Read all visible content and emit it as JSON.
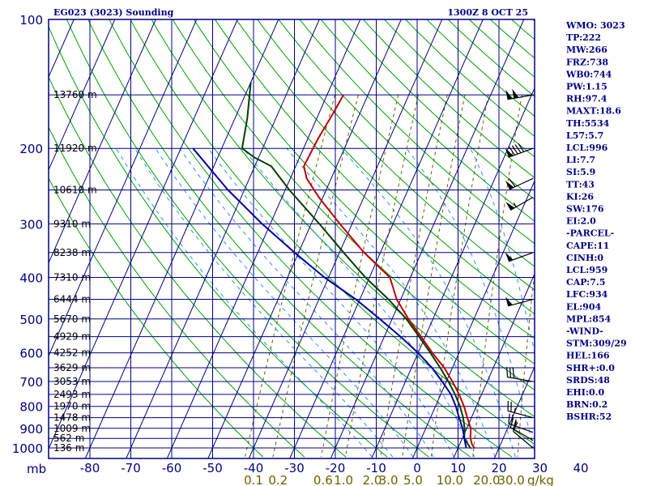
{
  "chart_data": {
    "type": "line",
    "title": "EG023 (3023) Sounding",
    "valid_time": "1300Z  8 OCT 25",
    "pressure_unit_label": "mb",
    "mixing_unit_label": "g/kg",
    "pressure_levels": [
      100,
      200,
      300,
      400,
      500,
      600,
      700,
      800,
      900,
      1000
    ],
    "temperature_ticks": [
      -80,
      -70,
      -60,
      -50,
      -40,
      -30,
      -20,
      -10,
      0,
      10,
      20,
      30,
      40
    ],
    "mixing_ratio_labels": [
      {
        "text": "0.1",
        "t": -40
      },
      {
        "text": "0.2",
        "t": -34
      },
      {
        "text": "0.6",
        "t": -23
      },
      {
        "text": "1.0",
        "t": -18
      },
      {
        "text": "2.0",
        "t": -11
      },
      {
        "text": "3.0",
        "t": -7
      },
      {
        "text": "5.0",
        "t": -1
      },
      {
        "text": "10.0",
        "t": 8
      },
      {
        "text": "20.0",
        "t": 17
      },
      {
        "text": "30.0",
        "t": 23
      }
    ],
    "height_labels": [
      {
        "p": 150,
        "text": "13760 m"
      },
      {
        "p": 200,
        "text": "11920 m"
      },
      {
        "p": 250,
        "text": "10610 m"
      },
      {
        "p": 300,
        "text": "9310 m"
      },
      {
        "p": 350,
        "text": "8238 m"
      },
      {
        "p": 400,
        "text": "7310 m"
      },
      {
        "p": 450,
        "text": "6444 m"
      },
      {
        "p": 500,
        "text": "5670 m"
      },
      {
        "p": 550,
        "text": "4929 m"
      },
      {
        "p": 600,
        "text": "4252 m"
      },
      {
        "p": 650,
        "text": "3629 m"
      },
      {
        "p": 700,
        "text": "3053 m"
      },
      {
        "p": 750,
        "text": "2493 m"
      },
      {
        "p": 800,
        "text": "1970 m"
      },
      {
        "p": 850,
        "text": "1478 m"
      },
      {
        "p": 900,
        "text": "1009 m"
      },
      {
        "p": 950,
        "text": "562 m"
      },
      {
        "p": 1000,
        "text": "136 m"
      }
    ],
    "series": [
      {
        "name": "Temperature",
        "color": "#c00000",
        "points": [
          {
            "p": 150,
            "t": -56
          },
          {
            "p": 165,
            "t": -56.5
          },
          {
            "p": 190,
            "t": -57.5
          },
          {
            "p": 220,
            "t": -58
          },
          {
            "p": 235,
            "t": -56
          },
          {
            "p": 260,
            "t": -51
          },
          {
            "p": 300,
            "t": -43
          },
          {
            "p": 350,
            "t": -34
          },
          {
            "p": 400,
            "t": -25
          },
          {
            "p": 450,
            "t": -21
          },
          {
            "p": 500,
            "t": -16
          },
          {
            "p": 550,
            "t": -11
          },
          {
            "p": 600,
            "t": -6.5
          },
          {
            "p": 650,
            "t": -2
          },
          {
            "p": 700,
            "t": 1.5
          },
          {
            "p": 750,
            "t": 4.5
          },
          {
            "p": 800,
            "t": 7
          },
          {
            "p": 850,
            "t": 9
          },
          {
            "p": 900,
            "t": 11
          },
          {
            "p": 950,
            "t": 12
          },
          {
            "p": 980,
            "t": 13
          },
          {
            "p": 1000,
            "t": 14
          }
        ]
      },
      {
        "name": "Dewpoint",
        "color": "#004000",
        "points": [
          {
            "p": 140,
            "t": -80
          },
          {
            "p": 170,
            "t": -77
          },
          {
            "p": 200,
            "t": -75
          },
          {
            "p": 210,
            "t": -71
          },
          {
            "p": 220,
            "t": -66
          },
          {
            "p": 250,
            "t": -59
          },
          {
            "p": 300,
            "t": -48
          },
          {
            "p": 350,
            "t": -39
          },
          {
            "p": 400,
            "t": -31
          },
          {
            "p": 450,
            "t": -23
          },
          {
            "p": 500,
            "t": -16.5
          },
          {
            "p": 550,
            "t": -11.5
          },
          {
            "p": 600,
            "t": -7
          },
          {
            "p": 650,
            "t": -3
          },
          {
            "p": 700,
            "t": 0.5
          },
          {
            "p": 750,
            "t": 3.5
          },
          {
            "p": 800,
            "t": 6
          },
          {
            "p": 850,
            "t": 8
          },
          {
            "p": 900,
            "t": 9.5
          },
          {
            "p": 950,
            "t": 10.5
          },
          {
            "p": 1000,
            "t": 13
          }
        ]
      },
      {
        "name": "Parcel",
        "color": "#0000a0",
        "points": [
          {
            "p": 200,
            "t": -87
          },
          {
            "p": 250,
            "t": -74
          },
          {
            "p": 300,
            "t": -62
          },
          {
            "p": 350,
            "t": -51
          },
          {
            "p": 400,
            "t": -41
          },
          {
            "p": 450,
            "t": -31
          },
          {
            "p": 500,
            "t": -23
          },
          {
            "p": 550,
            "t": -16
          },
          {
            "p": 600,
            "t": -10
          },
          {
            "p": 650,
            "t": -5
          },
          {
            "p": 700,
            "t": -1
          },
          {
            "p": 750,
            "t": 2.5
          },
          {
            "p": 800,
            "t": 5
          },
          {
            "p": 850,
            "t": 7
          },
          {
            "p": 900,
            "t": 9
          },
          {
            "p": 950,
            "t": 10.5
          },
          {
            "p": 1000,
            "t": 12
          }
        ]
      }
    ],
    "wind_barbs": [
      {
        "p": 150,
        "dir": 260,
        "spd": 100
      },
      {
        "p": 200,
        "dir": 250,
        "spd": 90
      },
      {
        "p": 235,
        "dir": 245,
        "spd": 60
      },
      {
        "p": 260,
        "dir": 240,
        "spd": 55
      },
      {
        "p": 350,
        "dir": 250,
        "spd": 50
      },
      {
        "p": 450,
        "dir": 255,
        "spd": 50
      },
      {
        "p": 700,
        "dir": 280,
        "spd": 30
      },
      {
        "p": 850,
        "dir": 285,
        "spd": 25
      },
      {
        "p": 920,
        "dir": 290,
        "spd": 25
      },
      {
        "p": 960,
        "dir": 300,
        "spd": 20
      },
      {
        "p": 1000,
        "dir": 310,
        "spd": 10
      }
    ]
  },
  "indices": [
    "WMO: 3023",
    "TP:222",
    "MW:266",
    "FRZ:738",
    "WB0:744",
    "PW:1.15",
    "RH:97.4",
    "MAXT:18.6",
    "TH:5534",
    "L57:5.7",
    "LCL:996",
    "LI:7.7",
    "SI:5.9",
    "TT:43",
    "KI:26",
    "SW:176",
    "EI:2.0",
    "-PARCEL-",
    "CAPE:11",
    "CINH:0",
    "LCL:959",
    "CAP:7.5",
    "LFC:934",
    "EL:904",
    "MPL:854",
    "-WIND-",
    "STM:309/29",
    "HEL:166",
    "SHR+:0.0",
    "SRDS:48",
    "EHI:0.0",
    "BRN:0.2",
    "BSHR:52"
  ],
  "colors": {
    "frame": "#000080",
    "isobar": "#000080",
    "isotherm": "#000080",
    "dry_adiabat": "#00a000",
    "moist_adiabat": "#3090ff",
    "mixing_ratio": "#6b6000"
  }
}
